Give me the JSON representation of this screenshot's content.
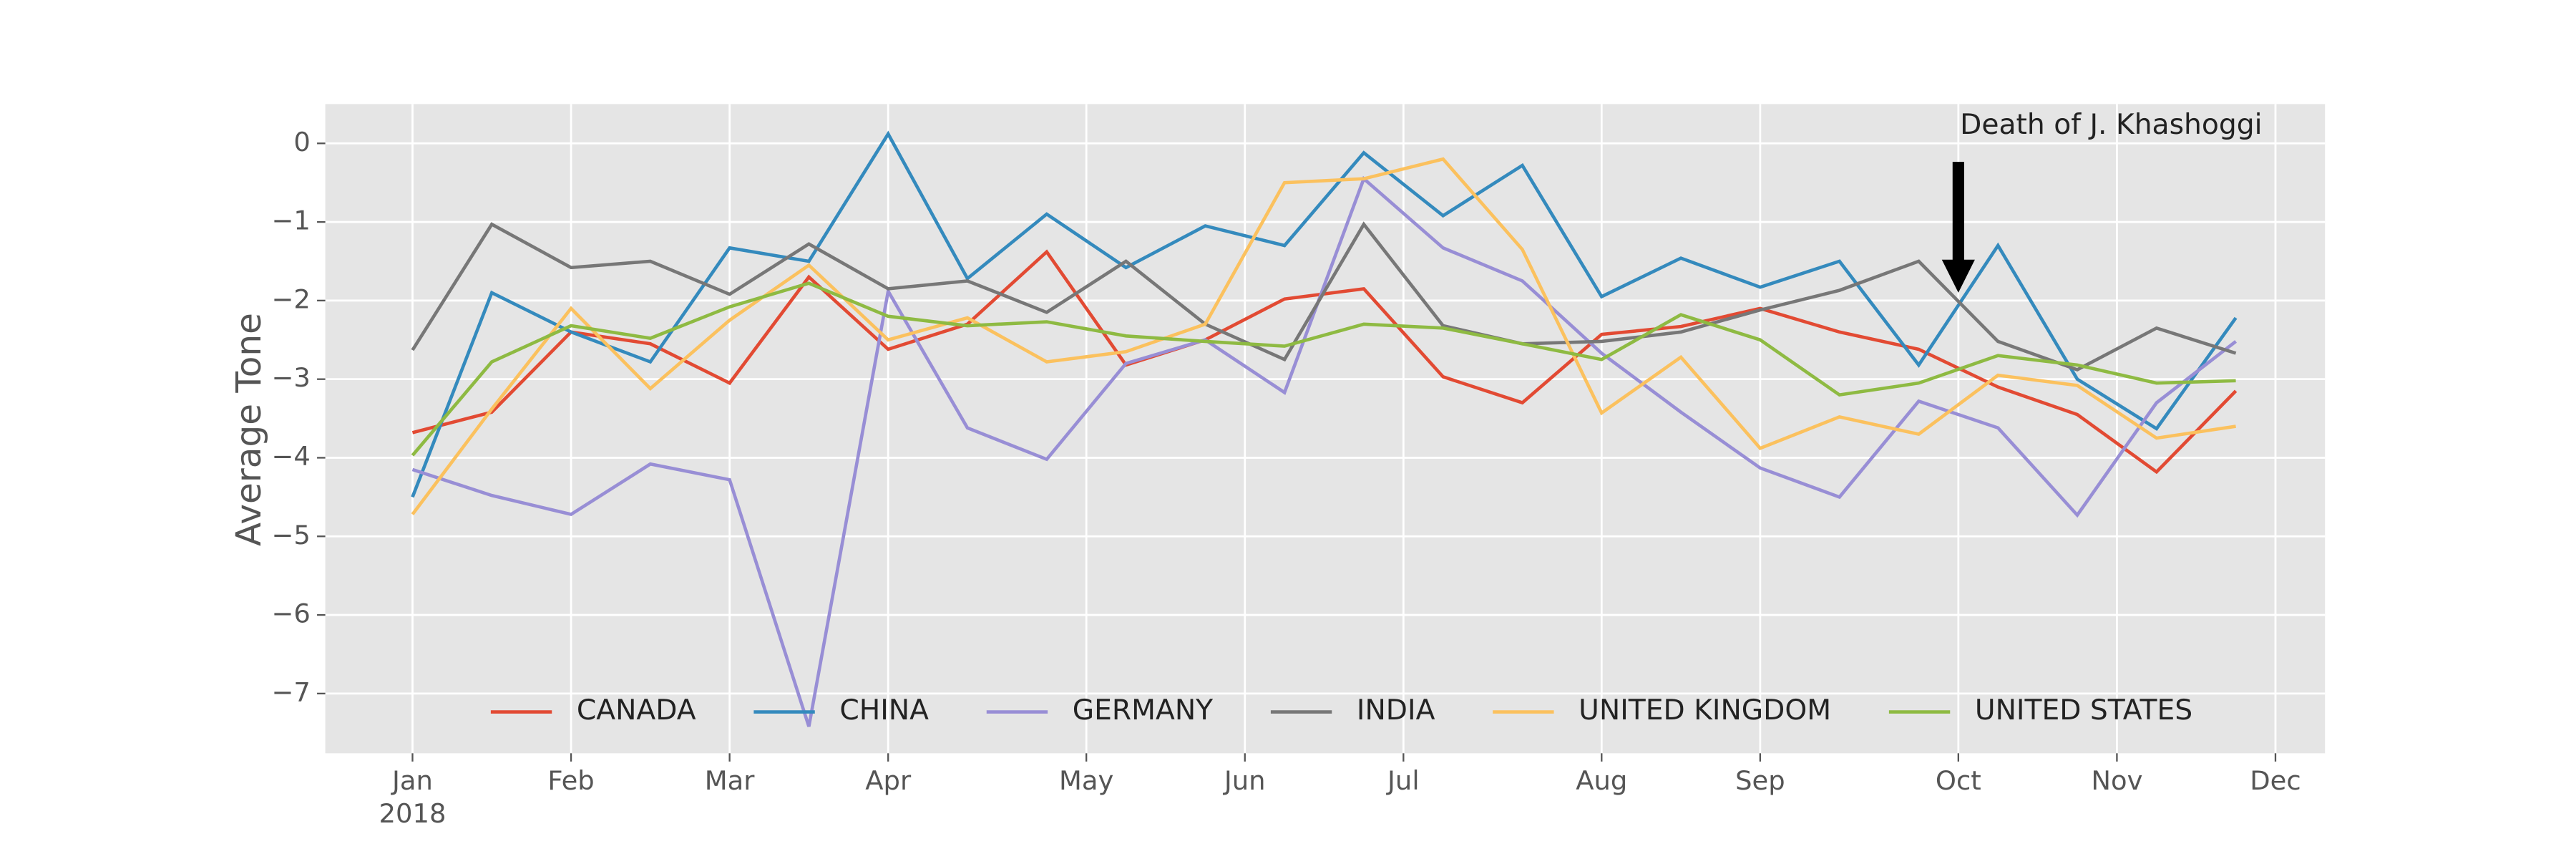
{
  "chart_data": {
    "type": "line",
    "ylabel": "Average Tone",
    "x": [
      0,
      2,
      4,
      6,
      8,
      10,
      12,
      14,
      16,
      18,
      20,
      22,
      24,
      26,
      28,
      30,
      32,
      34,
      36,
      38,
      40,
      42,
      44,
      46
    ],
    "xlim": [
      -2.2,
      48.25
    ],
    "xticks": [
      {
        "value": 0,
        "label": "Jan\n2018"
      },
      {
        "value": 4,
        "label": "Feb"
      },
      {
        "value": 8,
        "label": "Mar"
      },
      {
        "value": 12,
        "label": "Apr"
      },
      {
        "value": 17,
        "label": "May"
      },
      {
        "value": 21,
        "label": "Jun"
      },
      {
        "value": 25,
        "label": "Jul"
      },
      {
        "value": 30,
        "label": "Aug"
      },
      {
        "value": 34,
        "label": "Sep"
      },
      {
        "value": 39,
        "label": "Oct"
      },
      {
        "value": 43,
        "label": "Nov"
      },
      {
        "value": 47,
        "label": "Dec"
      }
    ],
    "ylim": [
      -7.76,
      0.5
    ],
    "yticks": [
      0,
      {
        "value": -1,
        "label": "−1"
      },
      {
        "value": -2,
        "label": "−2"
      },
      {
        "value": -3,
        "label": "−3"
      },
      {
        "value": -4,
        "label": "−4"
      },
      {
        "value": -5,
        "label": "−5"
      },
      {
        "value": -6,
        "label": "−6"
      },
      {
        "value": -7,
        "label": "−7"
      }
    ],
    "grid": true,
    "legend": "lower center",
    "series": [
      {
        "name": "CANADA",
        "color": "#E24A33",
        "values": [
          -3.68,
          -3.42,
          -2.4,
          -2.55,
          -3.05,
          -1.7,
          -2.62,
          -2.3,
          -1.38,
          -2.82,
          -2.5,
          -1.98,
          -1.85,
          -2.97,
          -3.3,
          -2.43,
          -2.33,
          -2.1,
          -2.4,
          -2.62,
          -3.1,
          -3.45,
          -4.18,
          -3.15
        ]
      },
      {
        "name": "CHINA",
        "color": "#348ABD",
        "values": [
          -4.5,
          -1.9,
          -2.4,
          -2.78,
          -1.33,
          -1.5,
          0.12,
          -1.72,
          -0.9,
          -1.58,
          -1.05,
          -1.3,
          -0.12,
          -0.92,
          -0.28,
          -1.95,
          -1.46,
          -1.83,
          -1.5,
          -2.82,
          -1.3,
          -3.0,
          -3.63,
          -2.22
        ]
      },
      {
        "name": "GERMANY",
        "color": "#988ED5",
        "values": [
          -4.15,
          -4.48,
          -4.72,
          -4.08,
          -4.28,
          -7.42,
          -1.88,
          -3.62,
          -4.02,
          -2.8,
          -2.5,
          -3.17,
          -0.45,
          -1.33,
          -1.75,
          -2.67,
          -3.42,
          -4.13,
          -4.5,
          -3.28,
          -3.62,
          -4.73,
          -3.3,
          -2.52
        ]
      },
      {
        "name": "INDIA",
        "color": "#777777",
        "values": [
          -2.63,
          -1.03,
          -1.58,
          -1.5,
          -1.92,
          -1.28,
          -1.85,
          -1.75,
          -2.15,
          -1.5,
          -2.3,
          -2.75,
          -1.03,
          -2.32,
          -2.55,
          -2.52,
          -2.4,
          -2.12,
          -1.87,
          -1.5,
          -2.52,
          -2.88,
          -2.35,
          -2.67
        ]
      },
      {
        "name": "UNITED KINGDOM",
        "color": "#FBC15E",
        "values": [
          -4.72,
          -3.38,
          -2.1,
          -3.12,
          -2.25,
          -1.55,
          -2.5,
          -2.22,
          -2.78,
          -2.65,
          -2.3,
          -0.5,
          -0.45,
          -0.2,
          -1.35,
          -3.43,
          -2.72,
          -3.88,
          -3.48,
          -3.7,
          -2.95,
          -3.08,
          -3.75,
          -3.6
        ]
      },
      {
        "name": "UNITED STATES",
        "color": "#8EBA42",
        "values": [
          -3.97,
          -2.78,
          -2.32,
          -2.48,
          -2.08,
          -1.78,
          -2.2,
          -2.32,
          -2.27,
          -2.45,
          -2.52,
          -2.58,
          -2.3,
          -2.35,
          -2.55,
          -2.75,
          -2.18,
          -2.5,
          -3.2,
          -3.05,
          -2.7,
          -2.82,
          -3.05,
          -3.02
        ]
      }
    ],
    "annotations": [
      {
        "text": "Death of J. Khashoggi",
        "x": 39,
        "y": -1.9
      }
    ]
  }
}
